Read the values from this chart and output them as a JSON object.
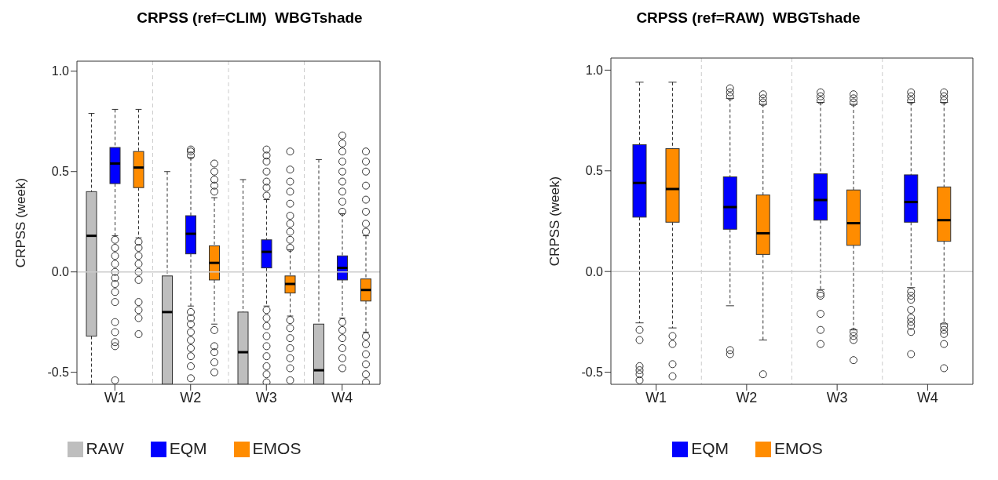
{
  "chart_data": [
    {
      "type": "box",
      "title": "CRPSS (ref=CLIM)  WBGTshade",
      "ylabel": "CRPSS (week)",
      "categories": [
        "W1",
        "W2",
        "W3",
        "W4"
      ],
      "ylim": [
        -0.56,
        1.05
      ],
      "yticks": [
        {
          "value": -0.5,
          "label": "-0.5"
        },
        {
          "value": 0,
          "label": "0.0"
        },
        {
          "value": 0.5,
          "label": "0.5"
        },
        {
          "value": 1,
          "label": "1.0"
        }
      ],
      "grid": "x",
      "legend": "bottom",
      "ref_lines": [
        {
          "axis": "y",
          "value": 0,
          "color": "#cccccc"
        }
      ],
      "series": [
        {
          "name": "RAW",
          "color": "#bebebe",
          "boxes": [
            {
              "low": -0.56,
              "q1": -0.32,
              "median": 0.18,
              "q3": 0.4,
              "high": 0.79
            },
            {
              "low": -0.56,
              "q1": -0.56,
              "median": -0.2,
              "q3": -0.02,
              "high": 0.5
            },
            {
              "low": -0.56,
              "q1": -0.56,
              "median": -0.4,
              "q3": -0.2,
              "high": 0.46
            },
            {
              "low": -0.56,
              "q1": -0.56,
              "median": -0.49,
              "q3": -0.26,
              "high": 0.56
            }
          ]
        },
        {
          "name": "EQM",
          "color": "#0000ff",
          "boxes": [
            {
              "low": 0.18,
              "q1": 0.44,
              "median": 0.54,
              "q3": 0.62,
              "high": 0.81,
              "outliers": [
                0.16,
                0.12,
                0.08,
                0.04,
                0.0,
                -0.03,
                -0.06,
                -0.1,
                -0.15,
                -0.25,
                -0.3,
                -0.35,
                -0.37,
                -0.54
              ]
            },
            {
              "low": -0.17,
              "q1": 0.09,
              "median": 0.19,
              "q3": 0.28,
              "high": 0.57,
              "outliers": [
                0.58,
                0.6,
                0.61,
                -0.2,
                -0.23,
                -0.26,
                -0.3,
                -0.34,
                -0.38,
                -0.42,
                -0.47,
                -0.53
              ]
            },
            {
              "low": -0.17,
              "q1": 0.02,
              "median": 0.1,
              "q3": 0.16,
              "high": 0.36,
              "outliers": [
                0.38,
                0.42,
                0.45,
                0.5,
                0.55,
                0.58,
                0.61,
                -0.19,
                -0.23,
                -0.27,
                -0.32,
                -0.37,
                -0.42,
                -0.47,
                -0.51,
                -0.55
              ]
            },
            {
              "low": -0.23,
              "q1": -0.04,
              "median": 0.02,
              "q3": 0.08,
              "high": 0.29,
              "outliers": [
                0.3,
                0.35,
                0.4,
                0.45,
                0.5,
                0.55,
                0.6,
                0.64,
                0.68,
                -0.25,
                -0.29,
                -0.33,
                -0.38,
                -0.43,
                -0.48
              ]
            }
          ]
        },
        {
          "name": "EMOS",
          "color": "#ff8c00",
          "boxes": [
            {
              "low": 0.17,
              "q1": 0.42,
              "median": 0.52,
              "q3": 0.6,
              "high": 0.81,
              "outliers": [
                0.15,
                0.12,
                0.08,
                0.04,
                0.0,
                -0.04,
                -0.15,
                -0.19,
                -0.23,
                -0.31
              ]
            },
            {
              "low": -0.26,
              "q1": -0.04,
              "median": 0.045,
              "q3": 0.13,
              "high": 0.37,
              "outliers": [
                0.4,
                0.43,
                0.46,
                0.5,
                0.54,
                -0.29,
                -0.37,
                -0.4,
                -0.45,
                -0.5
              ]
            },
            {
              "low": -0.22,
              "q1": -0.105,
              "median": -0.06,
              "q3": -0.02,
              "high": 0.11,
              "outliers": [
                0.12,
                0.16,
                0.2,
                0.24,
                0.28,
                0.34,
                0.4,
                0.45,
                0.51,
                0.6,
                -0.24,
                -0.28,
                -0.33,
                -0.38,
                -0.43,
                -0.48,
                -0.54
              ]
            },
            {
              "low": -0.3,
              "q1": -0.145,
              "median": -0.09,
              "q3": -0.035,
              "high": 0.18,
              "outliers": [
                0.2,
                0.24,
                0.3,
                0.36,
                0.43,
                0.5,
                0.55,
                0.6,
                -0.32,
                -0.36,
                -0.41,
                -0.46,
                -0.51,
                -0.55
              ]
            }
          ]
        }
      ]
    },
    {
      "type": "box",
      "title": "CRPSS (ref=RAW)  WBGTshade",
      "ylabel": "CRPSS (week)",
      "categories": [
        "W1",
        "W2",
        "W3",
        "W4"
      ],
      "ylim": [
        -0.56,
        1.06
      ],
      "yticks": [
        {
          "value": -0.5,
          "label": "-0.5"
        },
        {
          "value": 0,
          "label": "0.0"
        },
        {
          "value": 0.5,
          "label": "0.5"
        },
        {
          "value": 1,
          "label": "1.0"
        }
      ],
      "grid": "x",
      "legend": "bottom",
      "ref_lines": [
        {
          "axis": "y",
          "value": 0,
          "color": "#cccccc"
        }
      ],
      "series": [
        {
          "name": "EQM",
          "color": "#0000ff",
          "boxes": [
            {
              "low": -0.255,
              "q1": 0.27,
              "median": 0.44,
              "q3": 0.63,
              "high": 0.94,
              "outliers": [
                -0.29,
                -0.34,
                -0.47,
                -0.49,
                -0.51,
                -0.54
              ]
            },
            {
              "low": -0.17,
              "q1": 0.21,
              "median": 0.32,
              "q3": 0.47,
              "high": 0.86,
              "outliers": [
                0.87,
                0.89,
                0.91,
                -0.39,
                -0.41
              ]
            },
            {
              "low": -0.09,
              "q1": 0.255,
              "median": 0.355,
              "q3": 0.485,
              "high": 0.84,
              "outliers": [
                0.85,
                0.87,
                0.89,
                -0.11,
                -0.12,
                -0.21,
                -0.29,
                -0.36
              ]
            },
            {
              "low": -0.08,
              "q1": 0.245,
              "median": 0.345,
              "q3": 0.48,
              "high": 0.84,
              "outliers": [
                0.85,
                0.87,
                0.89,
                -0.1,
                -0.12,
                -0.14,
                -0.19,
                -0.23,
                -0.25,
                -0.27,
                -0.3,
                -0.41
              ]
            }
          ]
        },
        {
          "name": "EMOS",
          "color": "#ff8c00",
          "boxes": [
            {
              "low": -0.28,
              "q1": 0.245,
              "median": 0.41,
              "q3": 0.61,
              "high": 0.94,
              "outliers": [
                -0.32,
                -0.36,
                -0.46,
                -0.52
              ]
            },
            {
              "low": -0.34,
              "q1": 0.085,
              "median": 0.19,
              "q3": 0.38,
              "high": 0.83,
              "outliers": [
                0.84,
                0.86,
                0.88,
                -0.51
              ]
            },
            {
              "low": -0.29,
              "q1": 0.13,
              "median": 0.24,
              "q3": 0.405,
              "high": 0.83,
              "outliers": [
                0.84,
                0.86,
                0.88,
                -0.3,
                -0.32,
                -0.34,
                -0.44
              ]
            },
            {
              "low": -0.26,
              "q1": 0.15,
              "median": 0.255,
              "q3": 0.42,
              "high": 0.84,
              "outliers": [
                0.85,
                0.87,
                0.89,
                -0.27,
                -0.29,
                -0.31,
                -0.36,
                -0.48
              ]
            }
          ]
        }
      ]
    }
  ]
}
